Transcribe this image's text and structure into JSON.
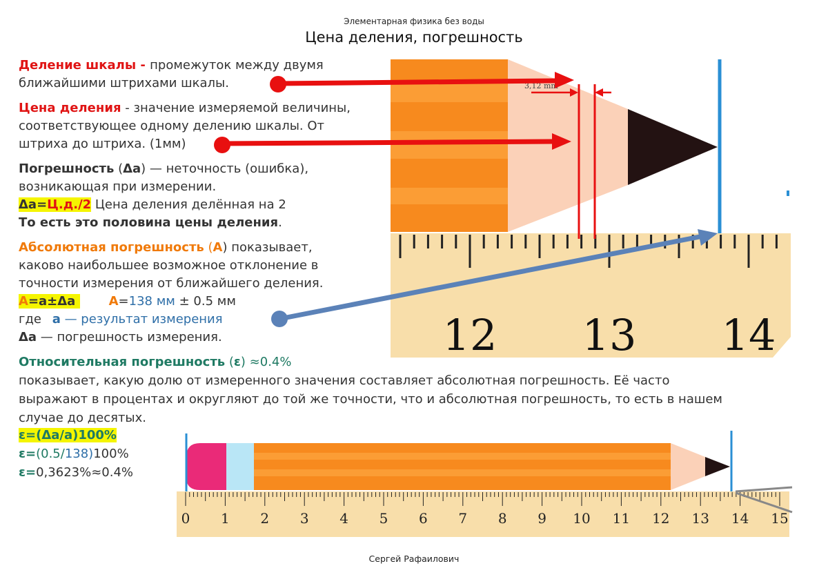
{
  "header": {
    "supertitle": "Элементарная физика без воды",
    "title": "Цена деления, погрешность"
  },
  "division": {
    "term": "Деление шкалы",
    "dash": " - ",
    "line1": " промежуток между двумя",
    "line2": "ближайшими штрихами шкалы."
  },
  "price": {
    "term": "Цена деления",
    "line1": " - значение измеряемой величины,",
    "line2": "соответствующее одному делению шкалы. От",
    "line3": "штриха до штриха. (1мм)"
  },
  "error": {
    "term": "Погрешность",
    "symbol_open": " (",
    "symbol": "Δa",
    "line1_rest": ") — неточность (ошибка),",
    "line2": "возникающая при измерении.",
    "formula_a": "Δa=",
    "formula_b": "Ц.д./2",
    "formula_text": "  Цена деления делённая на 2",
    "line4_bold": "То есть это половина цены деления",
    "line4_end": "."
  },
  "absolute": {
    "term": "Абсолютная погрешность",
    "open": " (",
    "symbol": "A",
    "line1_rest": ") показывает,",
    "line2": "каково наибольшее возможное отклонение в",
    "line3": "точности измерения от ближайшего деления.",
    "formula_A": "A",
    "formula_eq": "=a±Δa ",
    "example_A": "A",
    "example_eq": "=",
    "example_value": "138 мм",
    "example_err": " ± 0.5 мм",
    "where": "где ",
    "a_symbol": "a",
    "a_desc": " — результат измерения",
    "da_symbol": "Δa",
    "da_desc": " — погрешность измерения."
  },
  "relative": {
    "term": "Относительная погрешность",
    "open": " (",
    "symbol": "ε",
    "close": ")",
    "approx": " ≈0.4%",
    "line2": "показывает, какую долю от измеренного значения составляет абсолютная погрешность. Её часто",
    "line3": "выражают в процентах и округляют до той же точности, что и абсолютная погрешность, то есть в нашем",
    "line4": "случае до десятых.",
    "f1": "ε=(Δa/a)100%",
    "f2_eps": "ε=",
    "f2_a": "(0.5/",
    "f2_b": "138)",
    "f2_c": "100%",
    "f3_eps": "ε=",
    "f3_val": "0,3623%≈0.4%"
  },
  "big_ruler": {
    "labels": [
      "12",
      "13",
      "14"
    ],
    "measure_label": "3,12 mm"
  },
  "small_ruler": {
    "labels": [
      "0",
      "1",
      "2",
      "3",
      "4",
      "5",
      "6",
      "7",
      "8",
      "9",
      "10",
      "11",
      "12",
      "13",
      "14",
      "15"
    ]
  },
  "footer": {
    "author": "Сергей Рафаилович"
  },
  "colors": {
    "pencil_orange": "#f78a1e",
    "wood": "#fbd1b8",
    "ruler": "#f8deaa",
    "red_arrow": "#e81010",
    "blue_arrow": "#5b82b8",
    "blue_line": "#2a8fd4"
  }
}
